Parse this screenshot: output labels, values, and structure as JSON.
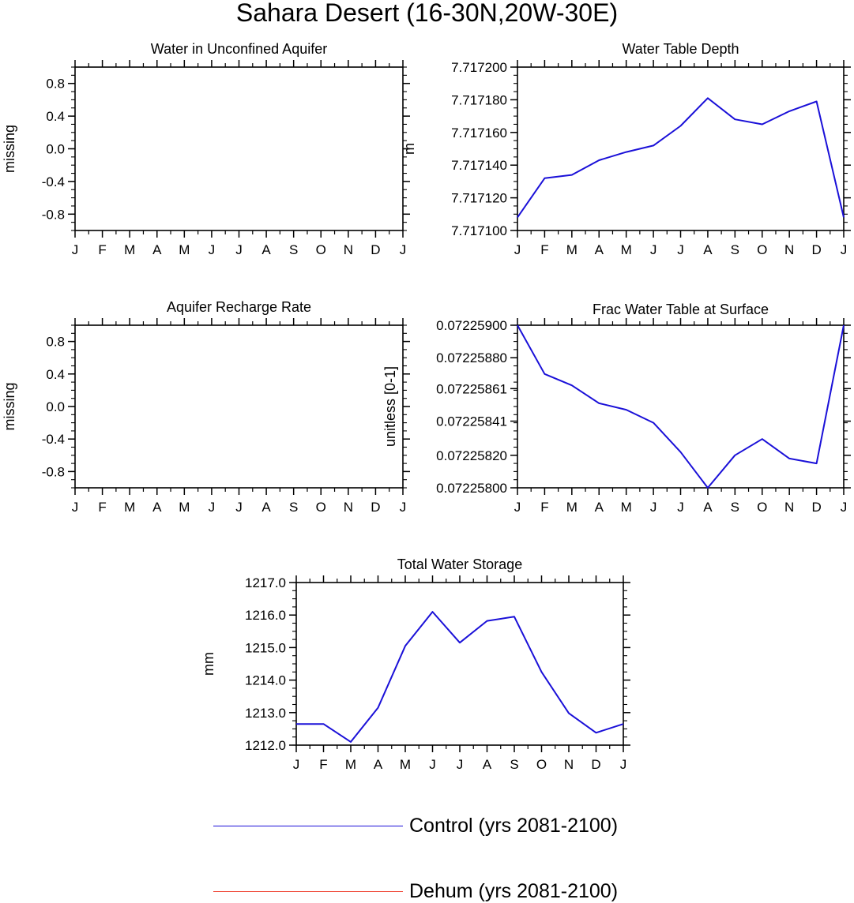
{
  "figure": {
    "title": "Sahara Desert (16-30N,20W-30E)"
  },
  "colors": {
    "control": "#1a10d8",
    "dehum": "#f04a3a",
    "axis": "#000000"
  },
  "legend": {
    "entries": [
      {
        "label": "Control (yrs 2081-2100)",
        "color": "#1a10d8"
      },
      {
        "label": "Dehum (yrs 2081-2100)",
        "color": "#f04a3a"
      }
    ]
  },
  "chart_data": [
    {
      "type": "line",
      "title": "Water in Unconfined Aquifer",
      "ylabel": "missing",
      "xlabel": "",
      "x": [
        "J",
        "F",
        "M",
        "A",
        "M",
        "J",
        "J",
        "A",
        "S",
        "O",
        "N",
        "D",
        "J"
      ],
      "ylim": [
        -1.0,
        1.0
      ],
      "yticks": [
        "0.8",
        "0.4",
        "0.0",
        "-0.4",
        "-0.8"
      ],
      "ytick_values": [
        0.8,
        0.4,
        0.0,
        -0.4,
        -0.8
      ],
      "series": []
    },
    {
      "type": "line",
      "title": "Water Table Depth",
      "ylabel": "m",
      "xlabel": "",
      "x": [
        "J",
        "F",
        "M",
        "A",
        "M",
        "J",
        "J",
        "A",
        "S",
        "O",
        "N",
        "D",
        "J"
      ],
      "ylim": [
        7.7171,
        7.7172
      ],
      "yticks": [
        "7.717200",
        "7.717180",
        "7.717160",
        "7.717140",
        "7.717120",
        "7.717100"
      ],
      "ytick_values": [
        7.7172,
        7.71718,
        7.71716,
        7.71714,
        7.71712,
        7.7171
      ],
      "series": [
        {
          "name": "Control (yrs 2081-2100)",
          "values": [
            7.717108,
            7.717132,
            7.717134,
            7.717143,
            7.717148,
            7.717152,
            7.717164,
            7.717181,
            7.717168,
            7.717165,
            7.717173,
            7.717179,
            7.717108
          ]
        }
      ]
    },
    {
      "type": "line",
      "title": "Aquifer Recharge Rate",
      "ylabel": "missing",
      "xlabel": "",
      "x": [
        "J",
        "F",
        "M",
        "A",
        "M",
        "J",
        "J",
        "A",
        "S",
        "O",
        "N",
        "D",
        "J"
      ],
      "ylim": [
        -1.0,
        1.0
      ],
      "yticks": [
        "0.8",
        "0.4",
        "0.0",
        "-0.4",
        "-0.8"
      ],
      "ytick_values": [
        0.8,
        0.4,
        0.0,
        -0.4,
        -0.8
      ],
      "series": []
    },
    {
      "type": "line",
      "title": "Frac Water Table at Surface",
      "ylabel": "unitless [0-1]",
      "xlabel": "",
      "x": [
        "J",
        "F",
        "M",
        "A",
        "M",
        "J",
        "J",
        "A",
        "S",
        "O",
        "N",
        "D",
        "J"
      ],
      "ylim": [
        0.072258,
        0.072259
      ],
      "yticks": [
        "0.07225900",
        "0.07225880",
        "0.07225861",
        "0.07225841",
        "0.07225820",
        "0.07225800"
      ],
      "ytick_values": [
        0.072259,
        0.0722588,
        0.07225861,
        0.07225841,
        0.0722582,
        0.072258
      ],
      "series": [
        {
          "name": "Control (yrs 2081-2100)",
          "values": [
            0.072259,
            0.0722587,
            0.07225863,
            0.07225852,
            0.07225848,
            0.0722584,
            0.07225822,
            0.072258,
            0.0722582,
            0.0722583,
            0.07225818,
            0.07225815,
            0.072259
          ]
        }
      ]
    },
    {
      "type": "line",
      "title": "Total Water Storage",
      "ylabel": "mm",
      "xlabel": "",
      "x": [
        "J",
        "F",
        "M",
        "A",
        "M",
        "J",
        "J",
        "A",
        "S",
        "O",
        "N",
        "D",
        "J"
      ],
      "ylim": [
        1212.0,
        1217.0
      ],
      "yticks": [
        "1217.0",
        "1216.0",
        "1215.0",
        "1214.0",
        "1213.0",
        "1212.0"
      ],
      "ytick_values": [
        1217.0,
        1216.0,
        1215.0,
        1214.0,
        1213.0,
        1212.0
      ],
      "series": [
        {
          "name": "Control (yrs 2081-2100)",
          "values": [
            1212.65,
            1212.65,
            1212.1,
            1213.15,
            1215.05,
            1216.1,
            1215.15,
            1215.82,
            1215.95,
            1214.25,
            1212.98,
            1212.38,
            1212.65
          ]
        }
      ]
    }
  ]
}
